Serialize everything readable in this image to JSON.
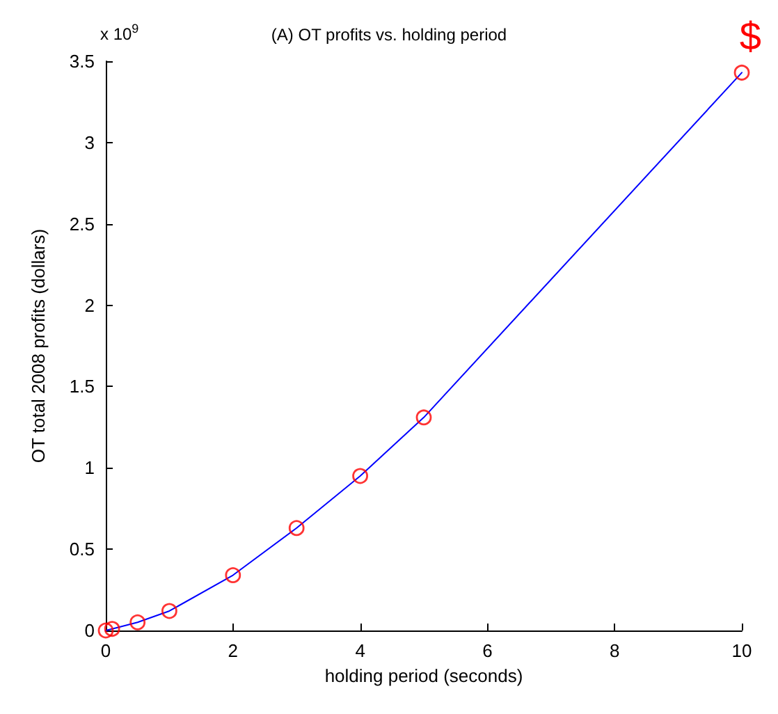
{
  "chart_data": {
    "type": "line",
    "title": "(A) OT profits vs. holding period",
    "xlabel": "holding period (seconds)",
    "ylabel": "OT total 2008 profits (dollars)",
    "annotations": [
      "x 10$^{9}$",
      "$"
    ],
    "x": [
      0,
      0.1,
      0.5,
      1,
      2,
      3,
      4,
      5,
      10
    ],
    "series": [
      {
        "type": "line",
        "color": "#0000ff",
        "marker": "none",
        "values": [
          0,
          0.01,
          0.05,
          0.12,
          0.34,
          0.63,
          0.95,
          1.31,
          3.43
        ]
      },
      {
        "type": "scatter",
        "color": "#ff0000",
        "marker": "circle",
        "values": [
          0,
          0.01,
          0.05,
          0.12,
          0.34,
          0.63,
          0.95,
          1.31,
          3.43
        ]
      }
    ],
    "xlim": [
      0,
      10
    ],
    "xticks": [
      0,
      2,
      4,
      6,
      8,
      10
    ],
    "ylim": [
      0,
      3.5
    ],
    "yticks": [
      0,
      0.5,
      1,
      1.5,
      2,
      2.5,
      3,
      3.5
    ],
    "grid": false
  }
}
